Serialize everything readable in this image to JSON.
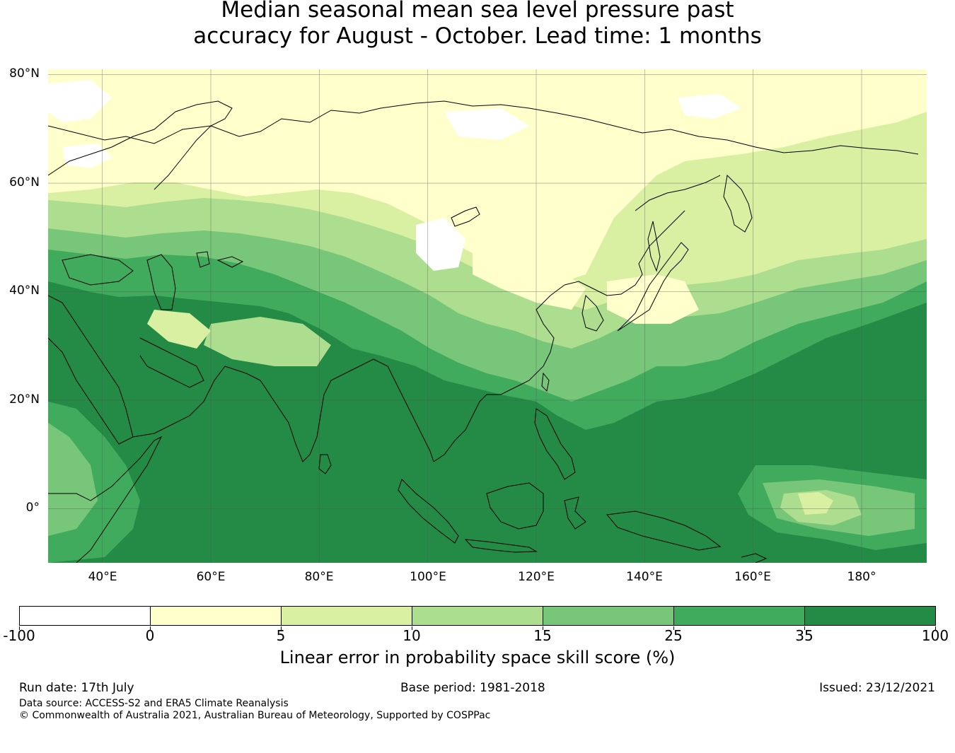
{
  "title_line1": "Median seasonal mean sea level pressure past",
  "title_line2": "accuracy for August - October. Lead time: 1 months",
  "map": {
    "lat_labels": [
      "80°N",
      "60°N",
      "40°N",
      "20°N",
      "0°"
    ],
    "lon_labels": [
      "40°E",
      "60°E",
      "80°E",
      "100°E",
      "120°E",
      "140°E",
      "160°E",
      "180°"
    ],
    "extent": {
      "lon_min": 30,
      "lon_max": 192,
      "lat_min": -10,
      "lat_max": 81
    },
    "ocean_color": "#238b45",
    "coast_color": "#000000"
  },
  "colorbar": {
    "bounds": [
      "-100",
      "0",
      "5",
      "10",
      "15",
      "25",
      "35",
      "100"
    ],
    "colors": [
      "#ffffff",
      "#ffffcc",
      "#d9f0a3",
      "#addd8e",
      "#78c679",
      "#41ab5d",
      "#238b45"
    ],
    "label": "Linear error in probability space skill score (%)"
  },
  "footer": {
    "run_date": "Run date: 17th July",
    "base_period": "Base period: 1981-2018",
    "issued": "Issued: 23/12/2021",
    "data_source": "Data source: ACCESS-S2 and ERA5 Climate Reanalysis",
    "copyright": "© Commonwealth of Australia 2021, Australian Bureau of Meteorology, Supported by COSPPac"
  }
}
